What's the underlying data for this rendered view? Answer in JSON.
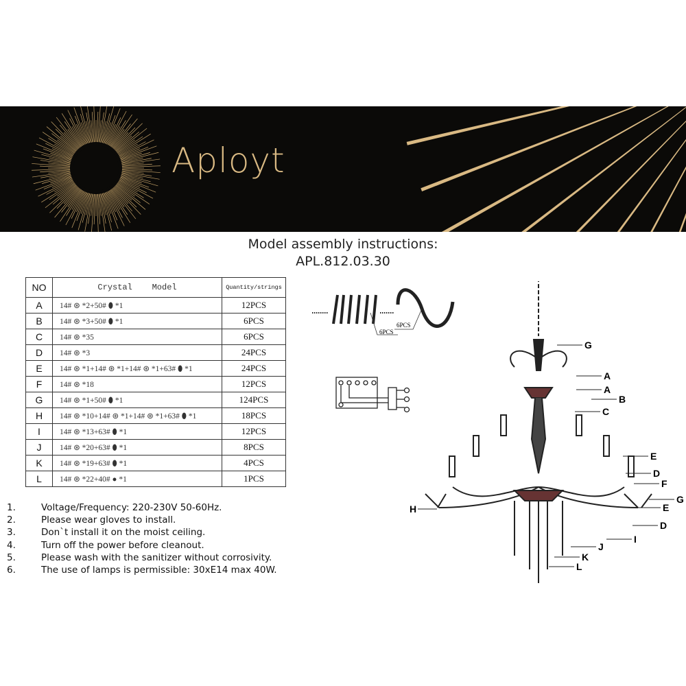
{
  "brand": {
    "name": "Aployt",
    "accent": "#d9b983",
    "band_color": "#0b0a08"
  },
  "title": {
    "line1": "Model assembly instructions:",
    "line2": "APL.812.03.30"
  },
  "table": {
    "headers": [
      "NO",
      "Crystal    Model",
      "Quantity/strings"
    ],
    "rows": [
      {
        "no": "A",
        "model": "14# ⊛ *2+50# ⬮ *1",
        "qty": "12PCS"
      },
      {
        "no": "B",
        "model": "14# ⊛ *3+50# ⬮ *1",
        "qty": "6PCS"
      },
      {
        "no": "C",
        "model": "14# ⊛ *35",
        "qty": "6PCS"
      },
      {
        "no": "D",
        "model": "14# ⊛ *3",
        "qty": "24PCS"
      },
      {
        "no": "E",
        "model": "14# ⊛ *1+14# ⊛ *1+14# ⊛ *1+63# ⬮ *1",
        "qty": "24PCS"
      },
      {
        "no": "F",
        "model": "14# ⊛ *18",
        "qty": "12PCS"
      },
      {
        "no": "G",
        "model": "14# ⊛ *1+50# ⬮ *1",
        "qty": "124PCS"
      },
      {
        "no": "H",
        "model": "14# ⊛ *10+14# ⊛ *1+14# ⊛ *1+63# ⬮ *1",
        "qty": "18PCS"
      },
      {
        "no": "I",
        "model": "14# ⊛ *13+63# ⬮ *1",
        "qty": "12PCS"
      },
      {
        "no": "J",
        "model": "14# ⊛ *20+63# ⬮ *1",
        "qty": "8PCS"
      },
      {
        "no": "K",
        "model": "14# ⊛ *19+63# ⬮ *1",
        "qty": "4PCS"
      },
      {
        "no": "L",
        "model": "14# ⊛ *22+40# ● *1",
        "qty": "1PCS"
      }
    ]
  },
  "notes": [
    {
      "n": "1.",
      "text": "Voltage/Frequency: 220-230V 50-60Hz."
    },
    {
      "n": "2.",
      "text": "Please wear gloves to install."
    },
    {
      "n": "3.",
      "text": "Don`t install it on the moist ceiling."
    },
    {
      "n": "4.",
      "text": "Turn off the power before cleanout."
    },
    {
      "n": "5.",
      "text": "Please wash with the sanitizer without corrosivity."
    },
    {
      "n": "6.",
      "text": "The use of lamps is permissible: 30xE14 max 40W."
    }
  ],
  "parts": {
    "strands_qty": "6PCS",
    "chain_qty": "6PCS"
  },
  "diagram_labels": [
    "G",
    "A",
    "A",
    "B",
    "C",
    "E",
    "D",
    "F",
    "G",
    "E",
    "D",
    "I",
    "J",
    "K",
    "L",
    "H"
  ]
}
